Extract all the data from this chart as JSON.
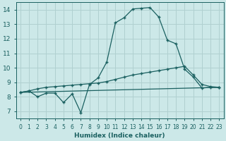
{
  "xlabel": "Humidex (Indice chaleur)",
  "background_color": "#cce8e8",
  "grid_color": "#b0d0d0",
  "line_color": "#1a6060",
  "xlim": [
    -0.5,
    23.5
  ],
  "ylim": [
    6.5,
    14.5
  ],
  "xticks": [
    0,
    1,
    2,
    3,
    4,
    5,
    6,
    7,
    8,
    9,
    10,
    11,
    12,
    13,
    14,
    15,
    16,
    17,
    18,
    19,
    20,
    21,
    22,
    23
  ],
  "yticks": [
    7,
    8,
    9,
    10,
    11,
    12,
    13,
    14
  ],
  "line1_x": [
    0,
    1,
    2,
    3,
    4,
    5,
    6,
    7,
    8,
    9,
    10,
    11,
    12,
    13,
    14,
    15,
    16,
    17,
    18,
    19,
    20,
    21,
    22,
    23
  ],
  "line1_y": [
    8.3,
    8.4,
    8.0,
    8.25,
    8.25,
    7.6,
    8.2,
    6.9,
    8.85,
    9.3,
    10.4,
    13.1,
    13.45,
    14.05,
    14.1,
    14.15,
    13.5,
    11.9,
    11.65,
    9.9,
    9.35,
    8.6,
    8.65,
    8.65
  ],
  "line2_x": [
    0,
    1,
    2,
    3,
    4,
    5,
    6,
    7,
    8,
    9,
    10,
    11,
    12,
    13,
    14,
    15,
    16,
    17,
    18,
    19,
    20,
    21,
    22,
    23
  ],
  "line2_y": [
    8.3,
    8.4,
    8.55,
    8.65,
    8.7,
    8.75,
    8.8,
    8.85,
    8.9,
    8.95,
    9.05,
    9.2,
    9.35,
    9.5,
    9.6,
    9.7,
    9.8,
    9.9,
    10.0,
    10.1,
    9.5,
    8.85,
    8.7,
    8.65
  ],
  "line3_x": [
    0,
    23
  ],
  "line3_y": [
    8.3,
    8.65
  ]
}
